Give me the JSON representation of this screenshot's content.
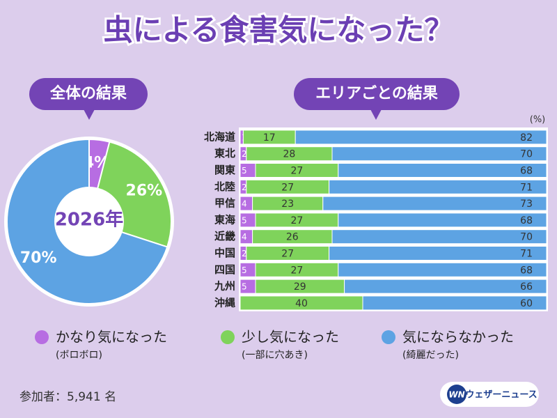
{
  "title": "虫による食害気になった？",
  "chart_data": [
    {
      "type": "pie",
      "title": "全体の結果",
      "center_label": "2026年",
      "values": [
        4,
        26,
        70
      ],
      "value_labels": [
        "4%",
        "26%",
        "70%"
      ],
      "colors": [
        "#b76de2",
        "#7fd35b",
        "#5da3e3"
      ]
    },
    {
      "type": "stacked_barh",
      "title": "エリアごとの結果",
      "unit": "(%)",
      "xlim": [
        0,
        100
      ],
      "categories": [
        "北海道",
        "東北",
        "関東",
        "北陸",
        "甲信",
        "東海",
        "近畿",
        "中国",
        "四国",
        "九州",
        "沖縄"
      ],
      "series": [
        {
          "name": "かなり気になった",
          "note": "(ボロボロ)",
          "color": "#b76de2",
          "values": [
            1,
            2,
            5,
            2,
            4,
            5,
            4,
            2,
            5,
            5,
            0
          ]
        },
        {
          "name": "少し気になった",
          "note": "(一部に穴あき)",
          "color": "#7fd35b",
          "values": [
            17,
            28,
            27,
            27,
            23,
            27,
            26,
            27,
            27,
            29,
            40
          ]
        },
        {
          "name": "気にならなかった",
          "note": "(綺麗だった)",
          "color": "#5da3e3",
          "values": [
            82,
            70,
            68,
            71,
            73,
            68,
            70,
            71,
            68,
            66,
            60
          ]
        }
      ]
    }
  ],
  "participants": "参加者：5,941 名",
  "logo": {
    "mark": "WN",
    "text": "ウェザーニュース"
  }
}
